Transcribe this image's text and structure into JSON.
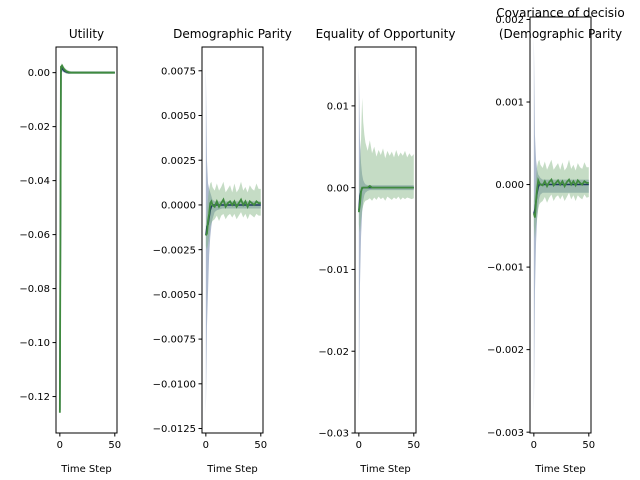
{
  "colors": {
    "blue_line": "#1f3a5f",
    "blue_band": "#6b82a8",
    "green_line": "#3f8a3f",
    "green_band": "#7fb27f",
    "axis": "#000000"
  },
  "chart_data": [
    {
      "type": "line",
      "title": "Utility",
      "xlabel": "Time Step",
      "ylabel": "",
      "xlim": [
        -3.5,
        52
      ],
      "ylim": [
        -0.1335,
        0.0095
      ],
      "xticks": [
        0,
        50
      ],
      "yticks": [
        0.0,
        -0.02,
        -0.04,
        -0.06,
        -0.08,
        -0.1,
        -0.12
      ],
      "ytick_labels": [
        "0.00",
        "−0.02",
        "−0.04",
        "−0.06",
        "−0.08",
        "−0.10",
        "−0.12"
      ],
      "grid": false,
      "series": [
        {
          "color_key": "blue",
          "x": [
            0,
            1,
            2,
            3,
            4,
            6,
            8,
            10,
            15,
            20,
            30,
            40,
            50
          ],
          "y": [
            -0.125,
            0.0,
            0.0018,
            0.0012,
            0.0006,
            0.0002,
            0.0,
            0.0,
            0.0,
            0.0,
            0.0,
            0.0,
            0.0
          ],
          "lower": [
            -0.126,
            -0.001,
            0.0005,
            0.0003,
            0.0,
            -0.0003,
            -0.0004,
            -0.0004,
            -0.0004,
            -0.0004,
            -0.0004,
            -0.0004,
            -0.0004
          ],
          "upper": [
            -0.124,
            0.0012,
            0.0026,
            0.002,
            0.0012,
            0.0006,
            0.0004,
            0.0004,
            0.0004,
            0.0004,
            0.0004,
            0.0004,
            0.0004
          ]
        },
        {
          "color_key": "green",
          "x": [
            0,
            1,
            2,
            3,
            4,
            6,
            8,
            10,
            15,
            20,
            30,
            40,
            50
          ],
          "y": [
            -0.126,
            0.0022,
            0.0026,
            0.0018,
            0.0012,
            0.0005,
            0.0002,
            0.0,
            0.0,
            0.0,
            0.0,
            0.0,
            0.0
          ],
          "lower": [
            -0.127,
            0.0008,
            0.0012,
            0.0006,
            0.0002,
            -0.0004,
            -0.0005,
            -0.0005,
            -0.0005,
            -0.0005,
            -0.0005,
            -0.0005,
            -0.0005
          ],
          "upper": [
            -0.125,
            0.0032,
            0.0034,
            0.0028,
            0.002,
            0.0012,
            0.0008,
            0.0005,
            0.0005,
            0.0005,
            0.0005,
            0.0005,
            0.0005
          ]
        }
      ]
    },
    {
      "type": "line",
      "title": "Demographic Parity",
      "xlabel": "Time Step",
      "ylabel": "",
      "xlim": [
        -3.5,
        52
      ],
      "ylim": [
        -0.01275,
        0.00883
      ],
      "xticks": [
        0,
        50
      ],
      "yticks": [
        0.0075,
        0.005,
        0.0025,
        0.0,
        -0.0025,
        -0.005,
        -0.0075,
        -0.01,
        -0.0125
      ],
      "ytick_labels": [
        "0.0075",
        "0.0050",
        "0.0025",
        "0.0000",
        "−0.0025",
        "−0.0050",
        "−0.0075",
        "−0.0100",
        "−0.0125"
      ],
      "grid": false,
      "series": [
        {
          "color_key": "blue",
          "x": [
            0,
            1,
            2,
            3,
            4,
            5,
            6,
            8,
            10,
            15,
            20,
            25,
            30,
            35,
            40,
            45,
            50
          ],
          "y": [
            -0.0017,
            -0.0012,
            -0.0011,
            -0.0007,
            -0.0003,
            -0.0001,
            0.0,
            0.0,
            0.0,
            0.0,
            0.0,
            0.0,
            0.0,
            0.0,
            0.0,
            0.0,
            0.0
          ],
          "lower": [
            -0.0117,
            -0.0068,
            -0.0048,
            -0.0028,
            -0.0018,
            -0.0012,
            -0.0008,
            -0.0004,
            -0.0003,
            -0.0002,
            -0.0002,
            -0.0002,
            -0.0002,
            -0.0002,
            -0.0002,
            -0.0002,
            -0.0002
          ],
          "upper": [
            0.0077,
            0.0025,
            0.0012,
            0.0009,
            0.0007,
            0.0005,
            0.0003,
            0.0002,
            0.0002,
            0.0002,
            0.0002,
            0.0002,
            0.0002,
            0.0002,
            0.0002,
            0.0002,
            0.0002
          ]
        },
        {
          "color_key": "green",
          "x": [
            0,
            1,
            2,
            3,
            4,
            5,
            6,
            8,
            10,
            12,
            14,
            16,
            18,
            20,
            22,
            24,
            26,
            28,
            30,
            32,
            34,
            36,
            38,
            40,
            42,
            44,
            46,
            48,
            50
          ],
          "y": [
            -0.0017,
            -0.0016,
            -0.0009,
            -0.0005,
            0.0001,
            0.0002,
            0.0,
            -0.0001,
            0.0002,
            -0.0001,
            0.0001,
            0.0003,
            -0.0001,
            0.0001,
            0.0002,
            0.0,
            0.0002,
            -0.0001,
            0.0001,
            0.0003,
            0.0,
            0.0002,
            -0.0001,
            0.0002,
            0.0001,
            0.0,
            0.0002,
            0.0001,
            0.0001
          ],
          "lower": [
            -0.0023,
            -0.0025,
            -0.0022,
            -0.0018,
            -0.0012,
            -0.001,
            -0.0009,
            -0.0008,
            -0.0006,
            -0.0009,
            -0.0006,
            -0.0005,
            -0.0008,
            -0.0006,
            -0.0005,
            -0.0007,
            -0.0005,
            -0.0008,
            -0.0006,
            -0.0004,
            -0.0007,
            -0.0005,
            -0.0008,
            -0.0005,
            -0.0006,
            -0.0007,
            -0.0005,
            -0.0006,
            -0.0006
          ],
          "upper": [
            -0.0011,
            -0.0004,
            0.0004,
            0.0009,
            0.0012,
            0.0013,
            0.001,
            0.0008,
            0.0012,
            0.0008,
            0.001,
            0.0013,
            0.0007,
            0.0009,
            0.0011,
            0.0007,
            0.0012,
            0.0007,
            0.0009,
            0.0013,
            0.0008,
            0.001,
            0.0007,
            0.0011,
            0.0009,
            0.0008,
            0.0012,
            0.0009,
            0.0009
          ]
        }
      ]
    },
    {
      "type": "line",
      "title": "Equality of Opportunity",
      "xlabel": "Time Step",
      "ylabel": "",
      "xlim": [
        -3.5,
        52
      ],
      "ylim": [
        -0.03,
        0.0172
      ],
      "xticks": [
        0,
        50
      ],
      "yticks": [
        0.01,
        0.0,
        -0.01,
        -0.02,
        -0.03
      ],
      "ytick_labels": [
        "0.01",
        "0.00",
        "−0.01",
        "−0.02",
        "−0.03"
      ],
      "grid": false,
      "series": [
        {
          "color_key": "blue",
          "x": [
            0,
            1,
            2,
            3,
            4,
            5,
            6,
            8,
            10,
            15,
            20,
            30,
            40,
            50
          ],
          "y": [
            -0.0028,
            -0.001,
            -0.0004,
            -0.0001,
            0.0,
            0.0,
            0.0,
            0.0,
            0.0,
            0.0,
            0.0,
            0.0,
            0.0,
            0.0
          ],
          "lower": [
            -0.0278,
            -0.012,
            -0.006,
            -0.003,
            -0.0016,
            -0.0009,
            -0.0006,
            -0.0004,
            -0.0003,
            -0.0003,
            -0.0003,
            -0.0003,
            -0.0003,
            -0.0003
          ],
          "upper": [
            0.0148,
            0.006,
            0.003,
            0.0016,
            0.0009,
            0.0006,
            0.0004,
            0.0003,
            0.0003,
            0.0003,
            0.0003,
            0.0003,
            0.0003,
            0.0003
          ]
        },
        {
          "color_key": "green",
          "x": [
            0,
            1,
            2,
            3,
            4,
            5,
            6,
            8,
            10,
            12,
            14,
            16,
            18,
            20,
            22,
            24,
            26,
            28,
            30,
            32,
            34,
            36,
            38,
            40,
            42,
            44,
            46,
            48,
            50
          ],
          "y": [
            -0.003,
            -0.002,
            -0.0005,
            0.0,
            0.0,
            0.0,
            0.0,
            0.0,
            0.0002,
            0.0,
            0.0,
            0.0,
            0.0,
            0.0,
            0.0,
            0.0,
            0.0,
            0.0,
            0.0,
            0.0,
            0.0,
            0.0,
            0.0,
            0.0,
            0.0,
            0.0,
            0.0,
            0.0,
            0.0
          ],
          "lower": [
            -0.0045,
            -0.0055,
            -0.004,
            -0.0028,
            -0.0022,
            -0.0018,
            -0.0016,
            -0.0015,
            -0.0013,
            -0.0016,
            -0.0012,
            -0.0015,
            -0.0011,
            -0.0014,
            -0.0012,
            -0.0016,
            -0.0011,
            -0.0013,
            -0.0015,
            -0.0012,
            -0.0014,
            -0.0011,
            -0.0015,
            -0.0012,
            -0.0014,
            -0.0012,
            -0.0013,
            -0.0014,
            -0.0013
          ],
          "upper": [
            -0.0015,
            0.0032,
            0.006,
            0.011,
            0.008,
            0.0065,
            0.0055,
            0.0045,
            0.0058,
            0.0042,
            0.005,
            0.0038,
            0.0046,
            0.004,
            0.0048,
            0.0036,
            0.0045,
            0.0039,
            0.0044,
            0.0037,
            0.0046,
            0.0038,
            0.0043,
            0.0039,
            0.0045,
            0.0037,
            0.0042,
            0.0038,
            0.0041
          ]
        }
      ]
    },
    {
      "type": "line",
      "title": "Covariance of decisio\n(Demographic Parity",
      "xlabel": "Time Step",
      "ylabel": "",
      "xlim": [
        -3.5,
        52
      ],
      "ylim": [
        -0.00301,
        0.00203
      ],
      "xticks": [
        0,
        50
      ],
      "yticks": [
        0.002,
        0.001,
        0.0,
        -0.001,
        -0.002,
        -0.003
      ],
      "ytick_labels": [
        "0.002",
        "0.001",
        "0.000",
        "−0.001",
        "−0.002",
        "−0.003"
      ],
      "grid": false,
      "series": [
        {
          "color_key": "blue",
          "x": [
            0,
            1,
            2,
            3,
            4,
            5,
            6,
            8,
            10,
            15,
            20,
            30,
            40,
            50
          ],
          "y": [
            -0.00035,
            -0.0003,
            -0.0002,
            -0.0001,
            -3e-05,
            0.0,
            0.0,
            0.0,
            0.0,
            0.0,
            0.0,
            0.0,
            0.0,
            0.0
          ],
          "lower": [
            -0.0028,
            -0.0013,
            -0.0007,
            -0.0004,
            -0.00025,
            -0.00016,
            -0.00012,
            -0.0001,
            -0.0001,
            -0.0001,
            -0.0001,
            -0.0001,
            -0.0001,
            -0.0001
          ],
          "upper": [
            0.0018,
            0.0006,
            0.0003,
            0.00018,
            0.00012,
            0.0001,
            8e-05,
            6e-05,
            6e-05,
            6e-05,
            6e-05,
            6e-05,
            6e-05,
            6e-05
          ]
        },
        {
          "color_key": "green",
          "x": [
            0,
            1,
            2,
            3,
            4,
            5,
            6,
            8,
            10,
            12,
            14,
            16,
            18,
            20,
            22,
            24,
            26,
            28,
            30,
            32,
            34,
            36,
            38,
            40,
            42,
            44,
            46,
            48,
            50
          ],
          "y": [
            -0.00035,
            -0.0004,
            -0.0002,
            -5e-05,
            5e-05,
            2e-05,
            0.0,
            -1e-05,
            4e-05,
            -2e-05,
            3e-05,
            6e-05,
            -1e-05,
            2e-05,
            5e-05,
            0.0,
            4e-05,
            -2e-05,
            3e-05,
            6e-05,
            0.0,
            4e-05,
            -1e-05,
            5e-05,
            2e-05,
            0.0,
            4e-05,
            2e-05,
            2e-05
          ],
          "lower": [
            -0.0005,
            -0.00065,
            -0.0005,
            -0.0004,
            -0.0003,
            -0.00024,
            -0.00022,
            -0.0002,
            -0.00015,
            -0.00022,
            -0.00016,
            -0.00012,
            -0.0002,
            -0.00015,
            -0.00013,
            -0.00018,
            -0.00013,
            -0.0002,
            -0.00015,
            -0.0001,
            -0.00018,
            -0.00013,
            -0.0002,
            -0.00013,
            -0.00016,
            -0.00018,
            -0.00012,
            -0.00016,
            -0.00015
          ],
          "upper": [
            -0.0002,
            -0.0001,
            0.0001,
            0.00022,
            0.00028,
            0.0003,
            0.00024,
            0.0002,
            0.00028,
            0.00018,
            0.00024,
            0.0003,
            0.00018,
            0.00022,
            0.00026,
            0.00018,
            0.00027,
            0.00017,
            0.00021,
            0.0003,
            0.00019,
            0.00024,
            0.00017,
            0.00026,
            0.00021,
            0.00019,
            0.00027,
            0.00021,
            0.00021
          ]
        }
      ]
    }
  ]
}
